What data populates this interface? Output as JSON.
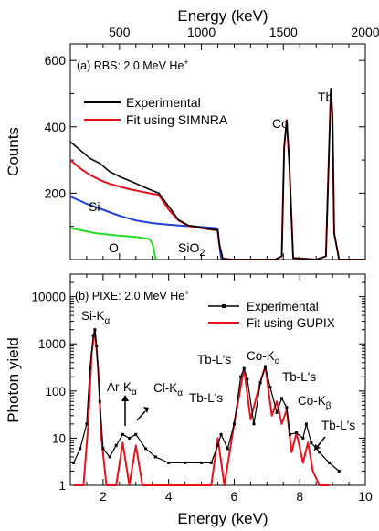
{
  "chart_data": [
    {
      "type": "line",
      "panel_label": "(a) RBS: 2.0 MeV He",
      "panel_label_sup": "+",
      "xlabel_top": "Energy (keV)",
      "ylabel": "Counts",
      "xlim": [
        200,
        2000
      ],
      "ylim": [
        0,
        650
      ],
      "xticks": [
        500,
        1000,
        1500,
        2000
      ],
      "yticks": [
        200,
        400,
        600
      ],
      "legend": [
        "Experimental",
        "Fit using SIMNRA"
      ],
      "annotations": {
        "si": "Si",
        "o": "O",
        "sio2": "SiO",
        "sio2_sub": "2",
        "co": "Co",
        "tb": "Tb"
      },
      "series": [
        {
          "name": "Experimental",
          "color": "#000000",
          "x": [
            200,
            260,
            320,
            380,
            440,
            500,
            560,
            620,
            680,
            740,
            800,
            860,
            920,
            980,
            1040,
            1090,
            1100,
            1110,
            1130,
            1180,
            1300,
            1450,
            1490,
            1505,
            1520,
            1535,
            1560,
            1700,
            1760,
            1780,
            1790,
            1800,
            1810,
            1840,
            2000
          ],
          "y": [
            355,
            330,
            305,
            290,
            265,
            250,
            238,
            225,
            212,
            200,
            160,
            120,
            103,
            98,
            92,
            90,
            86,
            45,
            3,
            0,
            0,
            0,
            10,
            340,
            420,
            300,
            5,
            0,
            10,
            350,
            515,
            430,
            80,
            0,
            0
          ]
        },
        {
          "name": "Fit using SIMNRA",
          "color": "#e8101a",
          "x": [
            200,
            260,
            320,
            380,
            440,
            500,
            560,
            620,
            680,
            740,
            800,
            860,
            920,
            980,
            1040,
            1090,
            1100,
            1110,
            1130,
            1180,
            1300,
            1450,
            1490,
            1505,
            1520,
            1535,
            1560,
            1700,
            1760,
            1780,
            1790,
            1800,
            1810,
            1840,
            2000
          ],
          "y": [
            300,
            275,
            255,
            240,
            228,
            220,
            212,
            206,
            200,
            195,
            150,
            118,
            102,
            96,
            92,
            88,
            85,
            45,
            3,
            0,
            0,
            0,
            10,
            340,
            420,
            300,
            5,
            0,
            10,
            350,
            515,
            430,
            80,
            0,
            0
          ]
        },
        {
          "color": "#1f3fd8",
          "x": [
            200,
            300,
            400,
            500,
            600,
            700,
            800,
            900,
            1000,
            1080,
            1100,
            1105,
            1120,
            1130
          ],
          "y": [
            190,
            168,
            150,
            132,
            118,
            110,
            105,
            101,
            98,
            95,
            93,
            60,
            5,
            0
          ]
        },
        {
          "color": "#22dd22",
          "x": [
            200,
            350,
            500,
            600,
            680,
            700,
            720,
            730
          ],
          "y": [
            95,
            80,
            72,
            68,
            62,
            50,
            5,
            0
          ]
        }
      ]
    },
    {
      "type": "line",
      "panel_label": "(b) PIXE: 2.0 MeV He",
      "panel_label_sup": "+",
      "xlabel": "Energy (keV)",
      "ylabel": "Photon yield",
      "xlim": [
        1,
        10
      ],
      "ylim": [
        1,
        30000
      ],
      "yscale": "log",
      "xticks": [
        2,
        4,
        6,
        8,
        10
      ],
      "ytick_labels": [
        "1",
        "10",
        "100",
        "1000",
        "10000"
      ],
      "legend": [
        "Experimental",
        "Fit using GUPIX"
      ],
      "annotations": {
        "si_k": "Si-K",
        "si_k_sub": "α",
        "ar_k": "Ar-K",
        "ar_k_sub": "α",
        "cl_k": "Cl-K",
        "cl_k_sub": "α",
        "tb_l1": "Tb-L's",
        "tb_l2": "Tb-L's",
        "tb_l3": "Tb-L's",
        "tb_l4": "Tb-L's",
        "co_ka": "Co-K",
        "co_ka_sub": "α",
        "co_kb": "Co-K",
        "co_kb_sub": "β"
      },
      "series": [
        {
          "name": "Experimental",
          "color": "#000000",
          "x": [
            1.1,
            1.3,
            1.5,
            1.6,
            1.7,
            1.75,
            1.8,
            1.9,
            2.0,
            2.2,
            2.4,
            2.6,
            2.8,
            3.0,
            3.3,
            3.6,
            4.0,
            4.5,
            5.0,
            5.3,
            5.5,
            5.6,
            5.8,
            6.0,
            6.2,
            6.3,
            6.4,
            6.6,
            6.8,
            6.95,
            7.1,
            7.3,
            7.45,
            7.6,
            7.7,
            7.9,
            8.1,
            8.2,
            8.35,
            8.6,
            8.9,
            9.2
          ],
          "y": [
            3,
            6,
            20,
            300,
            1500,
            2000,
            900,
            60,
            6,
            4,
            7,
            12,
            10,
            12,
            6,
            4,
            3,
            3,
            3,
            3,
            7,
            12,
            6,
            20,
            200,
            300,
            180,
            20,
            150,
            330,
            120,
            35,
            70,
            45,
            12,
            13,
            10,
            20,
            8,
            5,
            3,
            2
          ]
        },
        {
          "name": "Fit using GUPIX",
          "color": "#e8101a",
          "x": [
            1.1,
            1.4,
            1.55,
            1.65,
            1.75,
            1.85,
            1.95,
            2.1,
            2.4,
            2.6,
            2.8,
            3.0,
            3.2,
            3.5,
            4.5,
            5.3,
            5.5,
            5.7,
            6.0,
            6.3,
            6.5,
            6.8,
            6.95,
            7.15,
            7.3,
            7.45,
            7.6,
            7.75,
            7.9,
            8.1,
            8.25,
            8.4,
            8.6,
            8.9
          ],
          "y": [
            1,
            1,
            20,
            600,
            2000,
            300,
            10,
            1,
            1,
            8,
            1,
            7,
            1,
            1,
            1,
            1,
            10,
            1,
            20,
            300,
            25,
            160,
            330,
            30,
            60,
            20,
            40,
            5,
            13,
            3,
            8,
            2,
            1,
            1
          ]
        }
      ]
    }
  ]
}
